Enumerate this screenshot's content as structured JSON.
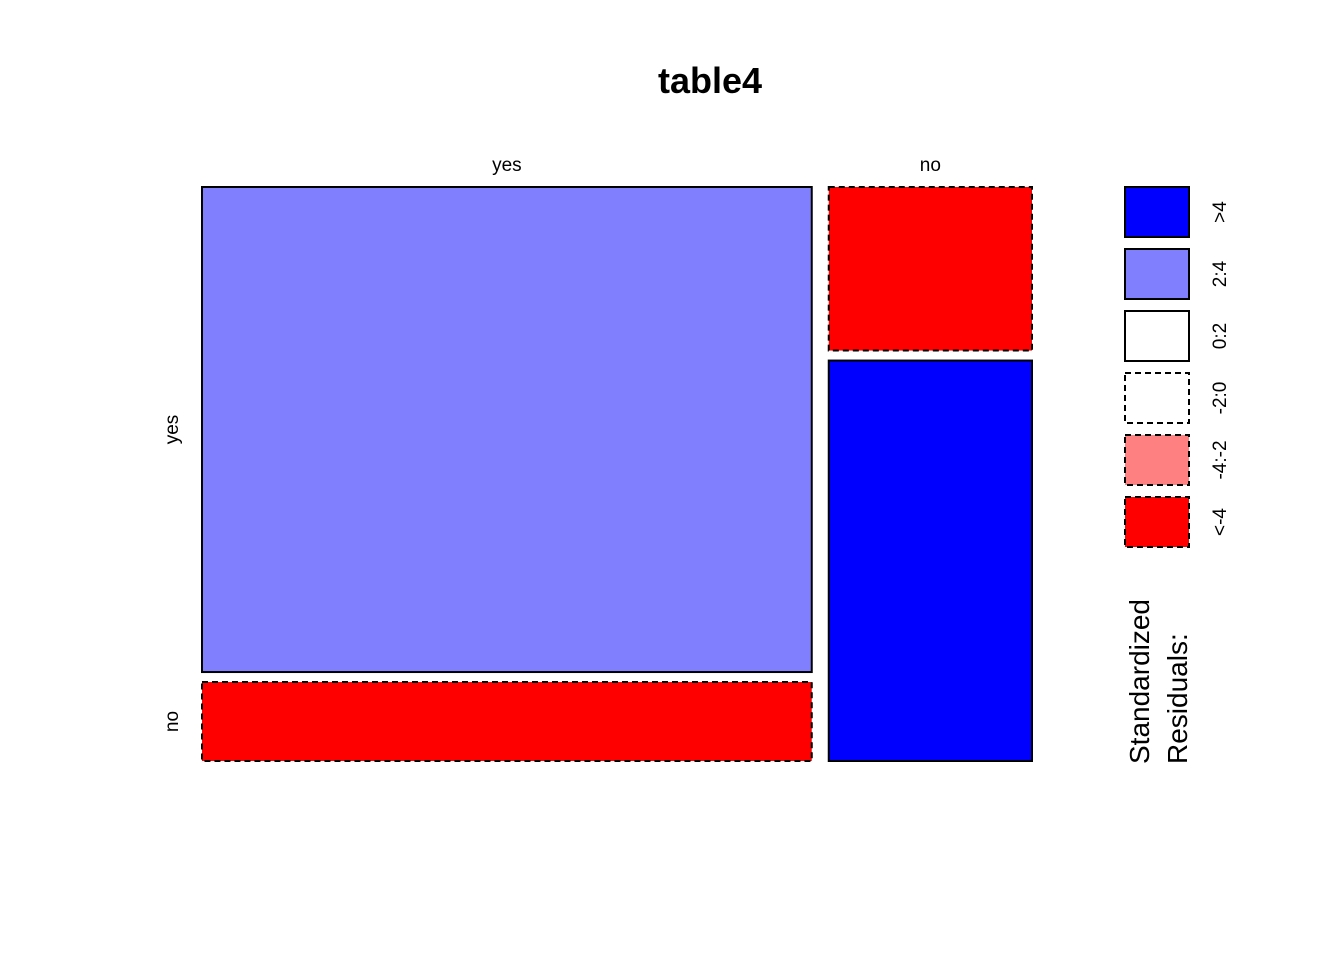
{
  "chart_data": {
    "type": "mosaic",
    "title": "table4",
    "column_categories": [
      "yes",
      "no"
    ],
    "row_categories": [
      "yes",
      "no"
    ],
    "column_proportions": [
      0.75,
      0.25
    ],
    "within_column_row_proportions": {
      "yes": [
        0.86,
        0.14
      ],
      "no": [
        0.29,
        0.71
      ]
    },
    "cells": [
      {
        "col": "yes",
        "row": "yes",
        "residual_class": "2:4"
      },
      {
        "col": "yes",
        "row": "no",
        "residual_class": "<-4"
      },
      {
        "col": "no",
        "row": "yes",
        "residual_class": "<-4"
      },
      {
        "col": "no",
        "row": "no",
        "residual_class": ">4"
      }
    ],
    "legend": {
      "title_line1": "Standardized",
      "title_line2": "Residuals:",
      "placement": "right",
      "entries": [
        {
          "label": ">4",
          "color": "#0000ff",
          "dashed": false
        },
        {
          "label": "2:4",
          "color": "#8080ff",
          "dashed": false
        },
        {
          "label": "0:2",
          "color": "#ffffff",
          "dashed": false
        },
        {
          "label": "-2:0",
          "color": "#ffffff",
          "dashed": true
        },
        {
          "label": "-4:-2",
          "color": "#ff8080",
          "dashed": true
        },
        {
          "label": "<-4",
          "color": "#ff0000",
          "dashed": true
        }
      ]
    }
  }
}
